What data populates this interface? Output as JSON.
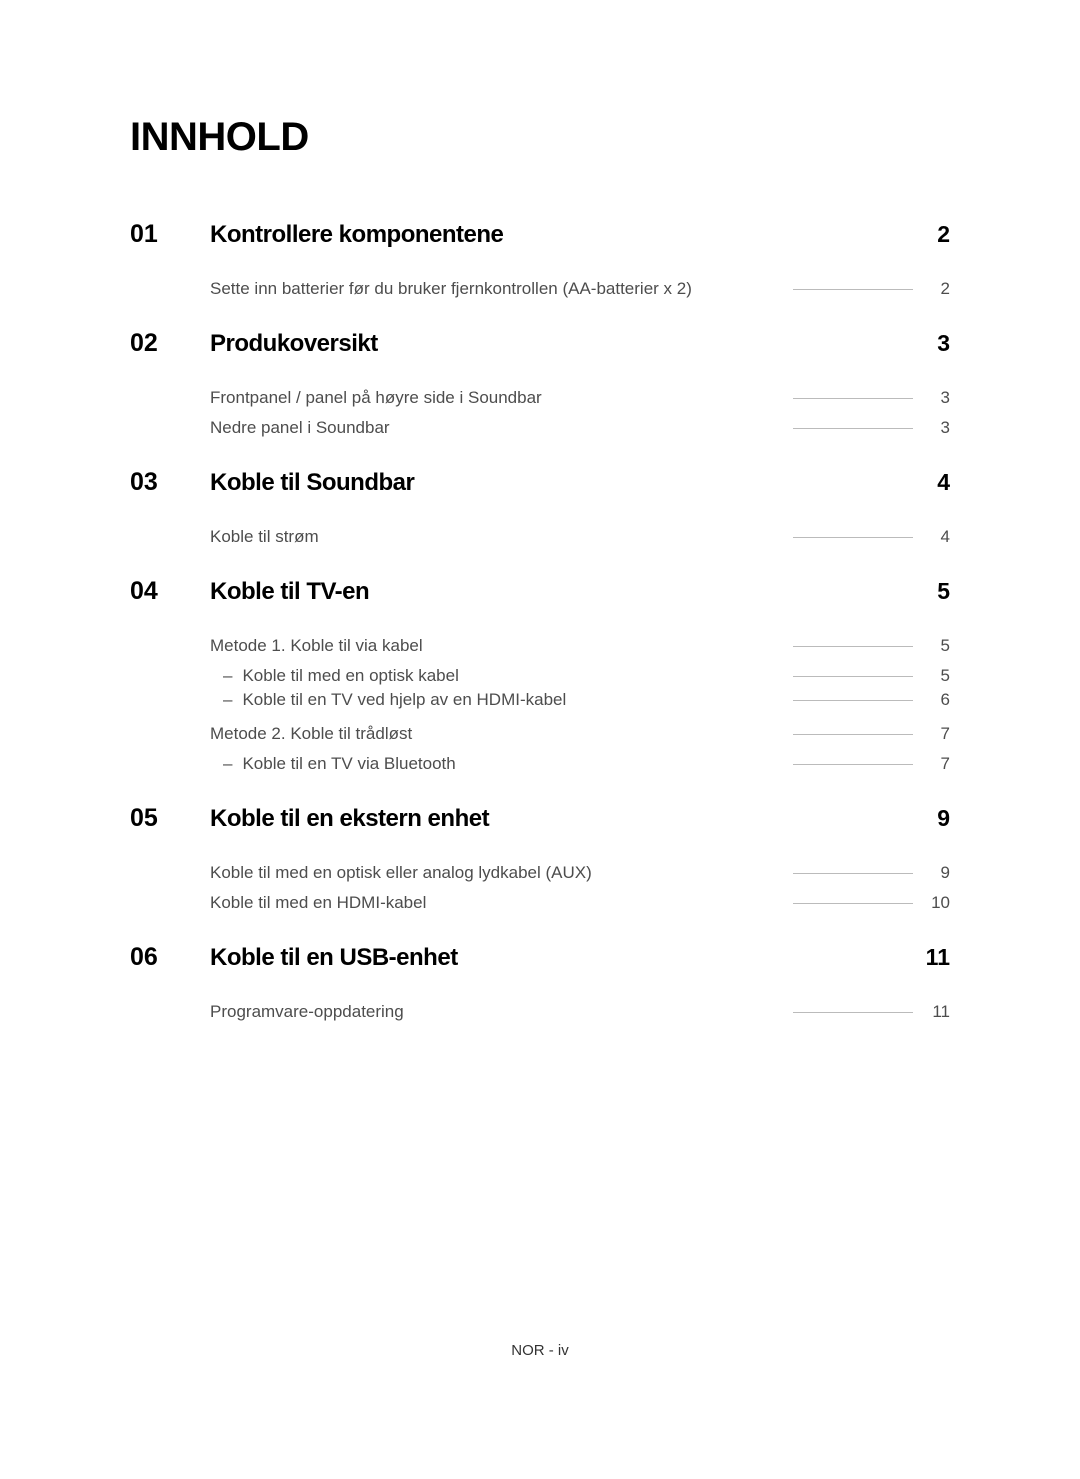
{
  "title": "INNHOLD",
  "footer": "NOR - iv",
  "sections": [
    {
      "num": "01",
      "title": "Kontrollere komponentene",
      "page": "2",
      "items": [
        {
          "type": "sub",
          "title": "Sette inn batterier før du bruker fjernkontrollen (AA-batterier x 2)",
          "page": "2"
        }
      ]
    },
    {
      "num": "02",
      "title": "Produkoversikt",
      "page": "3",
      "items": [
        {
          "type": "sub",
          "title": "Frontpanel / panel på høyre side i Soundbar",
          "page": "3"
        },
        {
          "type": "sub",
          "title": "Nedre panel i Soundbar",
          "page": "3"
        }
      ]
    },
    {
      "num": "03",
      "title": "Koble til Soundbar",
      "page": "4",
      "items": [
        {
          "type": "sub",
          "title": "Koble til strøm",
          "page": "4"
        }
      ]
    },
    {
      "num": "04",
      "title": "Koble til TV-en",
      "page": "5",
      "items": [
        {
          "type": "group",
          "rows": [
            {
              "type": "sub",
              "title": "Metode 1. Koble til via kabel",
              "page": "5"
            },
            {
              "type": "subsub",
              "title": "Koble til med en optisk kabel",
              "page": "5"
            },
            {
              "type": "subsub",
              "title": "Koble til en TV ved hjelp av en HDMI-kabel",
              "page": "6"
            }
          ]
        },
        {
          "type": "group",
          "rows": [
            {
              "type": "sub",
              "title": "Metode 2. Koble til trådløst",
              "page": "7"
            },
            {
              "type": "subsub",
              "title": "Koble til en TV via Bluetooth",
              "page": "7"
            }
          ]
        }
      ]
    },
    {
      "num": "05",
      "title": "Koble til en ekstern enhet",
      "page": "9",
      "items": [
        {
          "type": "sub",
          "title": "Koble til med en optisk eller analog lydkabel (AUX)",
          "page": "9"
        },
        {
          "type": "sub",
          "title": "Koble til med en HDMI-kabel",
          "page": "10"
        }
      ]
    },
    {
      "num": "06",
      "title": "Koble til en USB-enhet",
      "page": "11",
      "items": [
        {
          "type": "sub",
          "title": "Programvare-oppdatering",
          "page": "11"
        }
      ]
    }
  ]
}
